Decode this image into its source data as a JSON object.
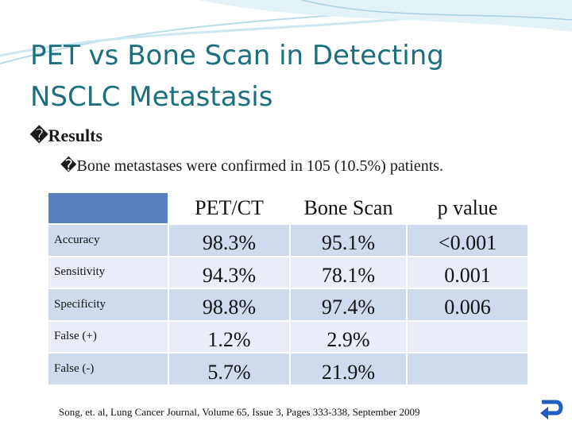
{
  "title": "PET vs Bone Scan in Detecting NSCLC Metastasis",
  "bullets": [
    "�Results",
    "�Bone metastases were confirmed in 105 (10.5%) patients."
  ],
  "table": {
    "columns": [
      "PET/CT",
      "Bone Scan",
      "p value"
    ],
    "rows": [
      [
        "Accuracy",
        "98.3%",
        "95.1%",
        "<0.001"
      ],
      [
        "Sensitivity",
        "94.3%",
        "78.1%",
        "0.001"
      ],
      [
        "Specificity",
        "98.8%",
        "97.4%",
        "0.006"
      ],
      [
        "False (+)",
        "1.2%",
        "2.9%",
        null
      ],
      [
        "False (-)",
        "5.7%",
        "21.9%",
        null
      ]
    ]
  },
  "citation": "Song, et. al, Lung Cancer Journal, Volume 65, Issue 3, Pages 333-338, September 2009"
}
